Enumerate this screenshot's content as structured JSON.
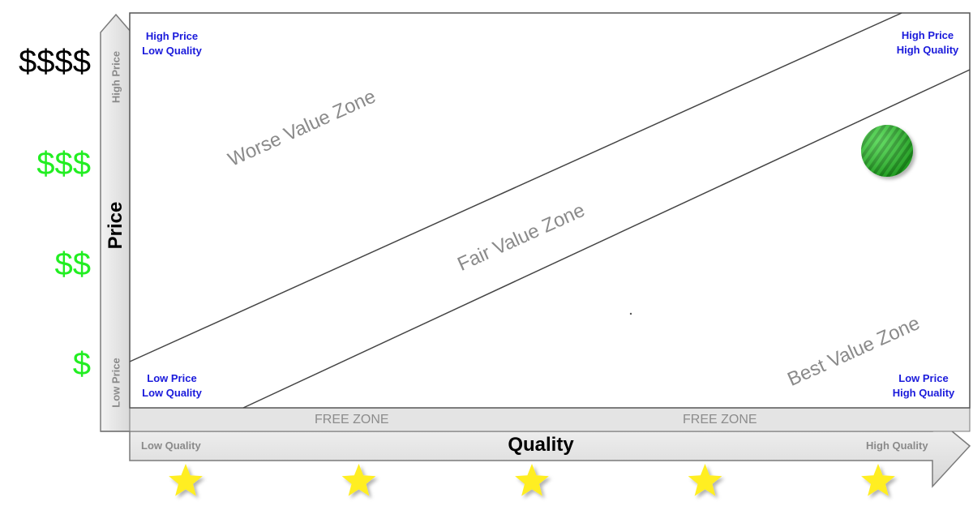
{
  "y_axis": {
    "title": "Price",
    "low_label": "Low Price",
    "high_label": "High Price",
    "levels": [
      {
        "text": "$$$$",
        "color": "#000000"
      },
      {
        "text": "$$$",
        "color": "#22ee22"
      },
      {
        "text": "$$",
        "color": "#22ee22"
      },
      {
        "text": "$",
        "color": "#22ee22"
      }
    ]
  },
  "x_axis": {
    "title": "Quality",
    "low_label": "Low Quality",
    "high_label": "High Quality",
    "star_count": 5,
    "star_color": "#ffee22"
  },
  "corners": {
    "top_left": {
      "line1": "High Price",
      "line2": "Low Quality"
    },
    "top_right": {
      "line1": "High Price",
      "line2": "High Quality"
    },
    "bottom_left": {
      "line1": "Low Price",
      "line2": "Low Quality"
    },
    "bottom_right": {
      "line1": "Low Price",
      "line2": "High Quality"
    }
  },
  "zones": {
    "worse": "Worse Value Zone",
    "fair": "Fair Value Zone",
    "best": "Best Value Zone",
    "free_left": "FREE ZONE",
    "free_right": "FREE ZONE"
  },
  "colors": {
    "corner_text": "#1a1adb",
    "marker": "#16a316",
    "arrow_fill": "#e3e3e3",
    "arrow_stroke": "#7a7a7a"
  }
}
